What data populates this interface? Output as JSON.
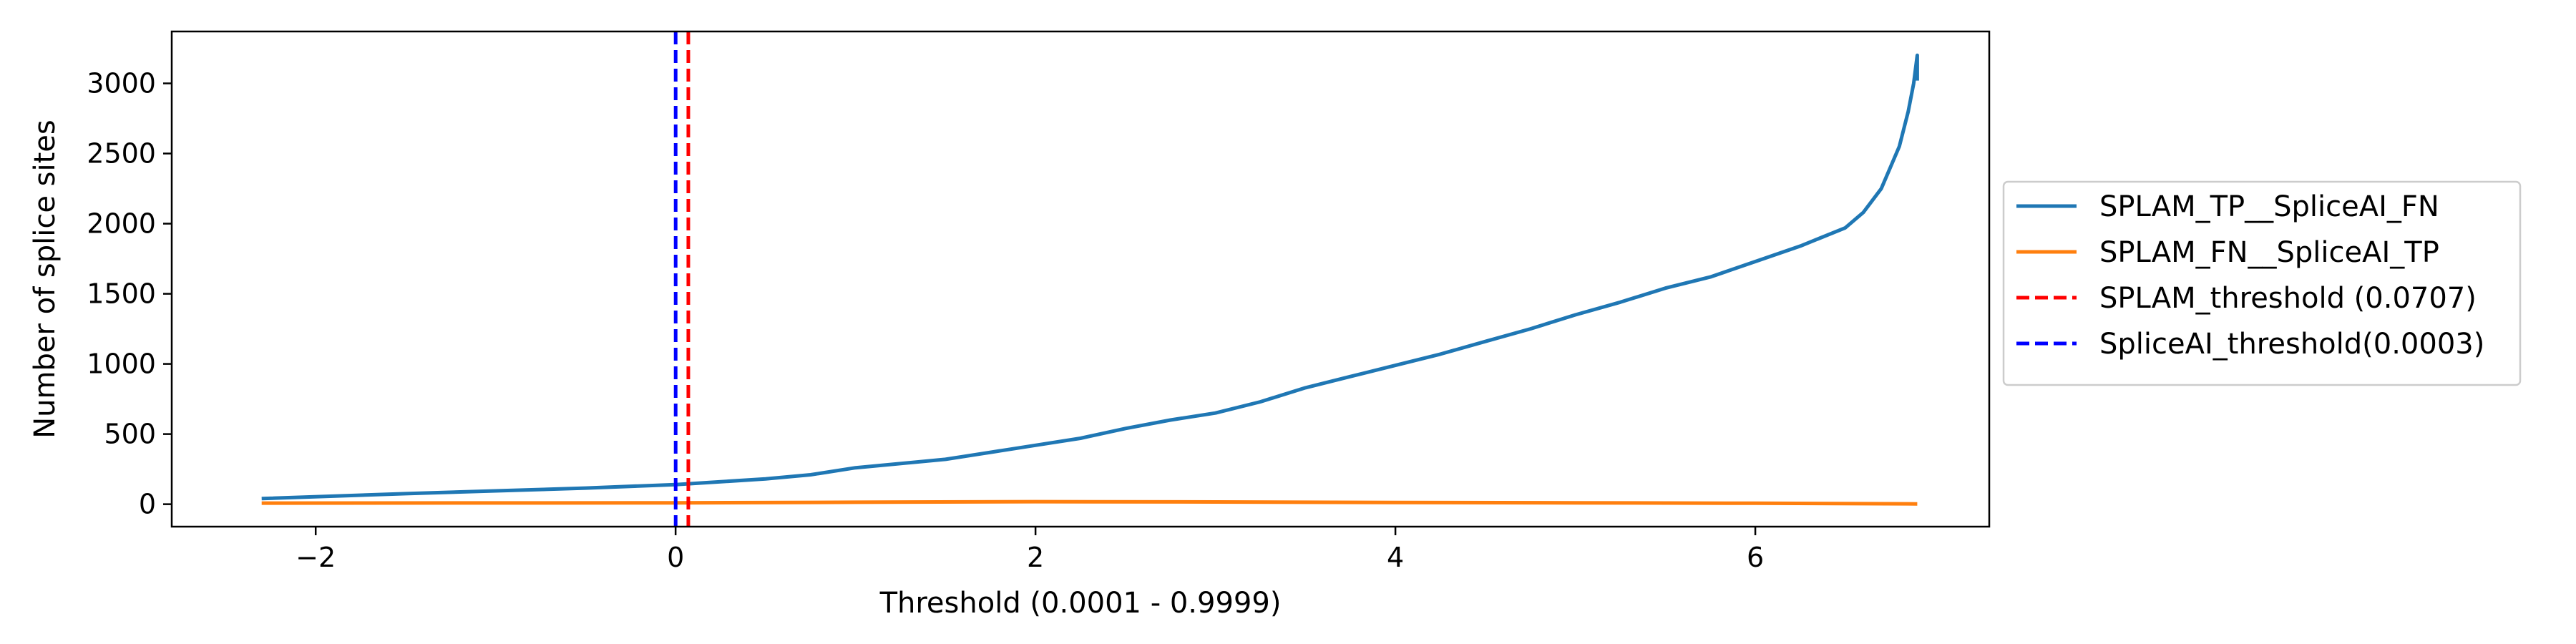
{
  "chart_data": {
    "type": "line",
    "title": "",
    "xlabel": "Threshold (0.0001 - 0.9999)",
    "ylabel": "Number of splice sites",
    "xlim": [
      -2.8,
      7.3
    ],
    "ylim": [
      -160,
      3370
    ],
    "xticks": [
      -2,
      0,
      2,
      4,
      6
    ],
    "xtick_labels": [
      "−2",
      "0",
      "2",
      "4",
      "6"
    ],
    "yticks": [
      0,
      500,
      1000,
      1500,
      2000,
      2500,
      3000
    ],
    "ytick_labels": [
      "0",
      "500",
      "1000",
      "1500",
      "2000",
      "2500",
      "3000"
    ],
    "grid": false,
    "legend_position": "outside right",
    "series": [
      {
        "name": "SPLAM_TP__SpliceAI_FN",
        "color": "#1f77b4",
        "style": "solid",
        "x": [
          -2.3,
          -1.5,
          -1.0,
          -0.5,
          0.0,
          0.5,
          0.75,
          1.0,
          1.5,
          1.75,
          2.0,
          2.25,
          2.5,
          2.75,
          3.0,
          3.25,
          3.5,
          3.75,
          4.0,
          4.25,
          4.5,
          4.75,
          5.0,
          5.25,
          5.5,
          5.75,
          6.0,
          6.25,
          6.5,
          6.6,
          6.7,
          6.75,
          6.8,
          6.85,
          6.88,
          6.9,
          6.9
        ],
        "y": [
          40,
          75,
          95,
          115,
          140,
          180,
          210,
          260,
          320,
          370,
          420,
          470,
          540,
          600,
          650,
          730,
          830,
          910,
          990,
          1070,
          1160,
          1250,
          1350,
          1440,
          1540,
          1620,
          1730,
          1840,
          1970,
          2080,
          2250,
          2400,
          2550,
          2800,
          3000,
          3200,
          3020
        ]
      },
      {
        "name": "SPLAM_FN__SpliceAI_TP",
        "color": "#ff7f0e",
        "style": "solid",
        "x": [
          -2.3,
          -1.0,
          0.0,
          1.0,
          2.0,
          3.0,
          4.0,
          5.0,
          6.0,
          6.9
        ],
        "y": [
          8,
          9,
          10,
          14,
          18,
          16,
          12,
          10,
          7,
          2
        ]
      }
    ],
    "vertical_lines": [
      {
        "name": "SPLAM_threshold (0.0707)",
        "x": 0.0707,
        "color": "#ff0000",
        "style": "dashed"
      },
      {
        "name": "SpliceAI_threshold(0.0003)",
        "x": 0.0003,
        "color": "#0000ff",
        "style": "dashed"
      }
    ],
    "legend": [
      {
        "label": "SPLAM_TP__SpliceAI_FN",
        "color": "#1f77b4",
        "style": "solid"
      },
      {
        "label": "SPLAM_FN__SpliceAI_TP",
        "color": "#ff7f0e",
        "style": "solid"
      },
      {
        "label": "SPLAM_threshold (0.0707)",
        "color": "#ff0000",
        "style": "dashed"
      },
      {
        "label": "SpliceAI_threshold(0.0003)",
        "color": "#0000ff",
        "style": "dashed"
      }
    ]
  }
}
